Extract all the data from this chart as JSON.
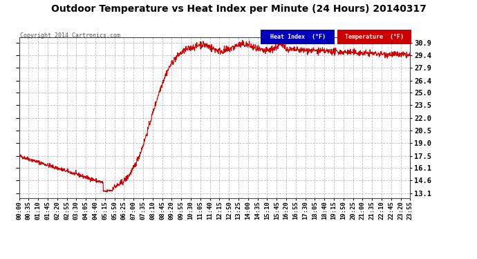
{
  "title": "Outdoor Temperature vs Heat Index per Minute (24 Hours) 20140317",
  "copyright": "Copyright 2014 Cartronics.com",
  "background_color": "#ffffff",
  "plot_bg_color": "#ffffff",
  "grid_color": "#bbbbbb",
  "line_color": "#cc0000",
  "legend_heat_bg": "#0000bb",
  "legend_temp_bg": "#cc0000",
  "legend_text_color": "#ffffff",
  "yticks": [
    13.1,
    14.6,
    16.1,
    17.5,
    19.0,
    20.5,
    22.0,
    23.5,
    25.0,
    26.4,
    27.9,
    29.4,
    30.9
  ],
  "ymin": 12.5,
  "ymax": 31.5,
  "xtick_labels": [
    "00:00",
    "00:35",
    "01:10",
    "01:45",
    "02:20",
    "02:55",
    "03:30",
    "04:05",
    "04:40",
    "05:15",
    "05:50",
    "06:25",
    "07:00",
    "07:35",
    "08:10",
    "08:45",
    "09:20",
    "09:55",
    "10:30",
    "11:05",
    "11:40",
    "12:15",
    "12:50",
    "13:25",
    "14:00",
    "14:35",
    "15:10",
    "15:45",
    "16:20",
    "16:55",
    "17:30",
    "18:05",
    "18:40",
    "19:15",
    "19:50",
    "20:25",
    "21:00",
    "21:35",
    "22:10",
    "22:45",
    "23:20",
    "23:55"
  ],
  "num_points": 1440,
  "title_fontsize": 10,
  "copyright_fontsize": 6,
  "ytick_fontsize": 7.5,
  "xtick_fontsize": 6.5
}
